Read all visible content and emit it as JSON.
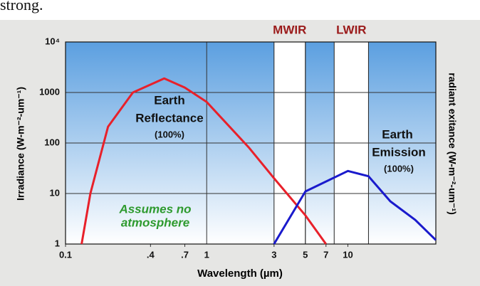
{
  "caption": "strong.",
  "chart_data": {
    "type": "line",
    "xlabel": "Wavelength (µm)",
    "ylabel": "Irradiance (W-m⁻²-um⁻¹)",
    "y2label": "radiant exitance (W-m⁻²-um⁻¹)",
    "xscale": "log",
    "yscale": "log",
    "grid": true,
    "xlim": [
      0.1,
      42
    ],
    "ylim": [
      1,
      10000
    ],
    "xticks": [
      0.1,
      {
        "value": 0.4,
        "label": ".4"
      },
      {
        "value": 0.7,
        "label": ".7"
      },
      1,
      3,
      5,
      7,
      10
    ],
    "yticks": [
      1,
      10,
      100,
      1000,
      {
        "value": 10000,
        "label": "10⁴"
      }
    ],
    "bands": [
      {
        "label": "MWIR",
        "range": [
          3,
          5
        ]
      },
      {
        "label": "LWIR",
        "range": [
          8,
          14
        ]
      }
    ],
    "series": [
      {
        "color": "#e8202a",
        "x": [
          0.13,
          0.15,
          0.2,
          0.3,
          0.5,
          0.7,
          1,
          2,
          3,
          5,
          7
        ],
        "values": [
          1,
          10,
          210,
          1000,
          1900,
          1250,
          650,
          80,
          20,
          3.7,
          1
        ]
      },
      {
        "color": "#1a1acc",
        "x": [
          3,
          5,
          10,
          14,
          20,
          30,
          42
        ],
        "values": [
          1,
          11,
          28,
          22,
          7,
          3,
          1.2
        ]
      }
    ],
    "annotations": [
      "Earth",
      "Reflectance",
      "(100%)",
      "Earth",
      "Emission",
      "(100%)",
      "Assumes no",
      "atmosphere"
    ]
  }
}
